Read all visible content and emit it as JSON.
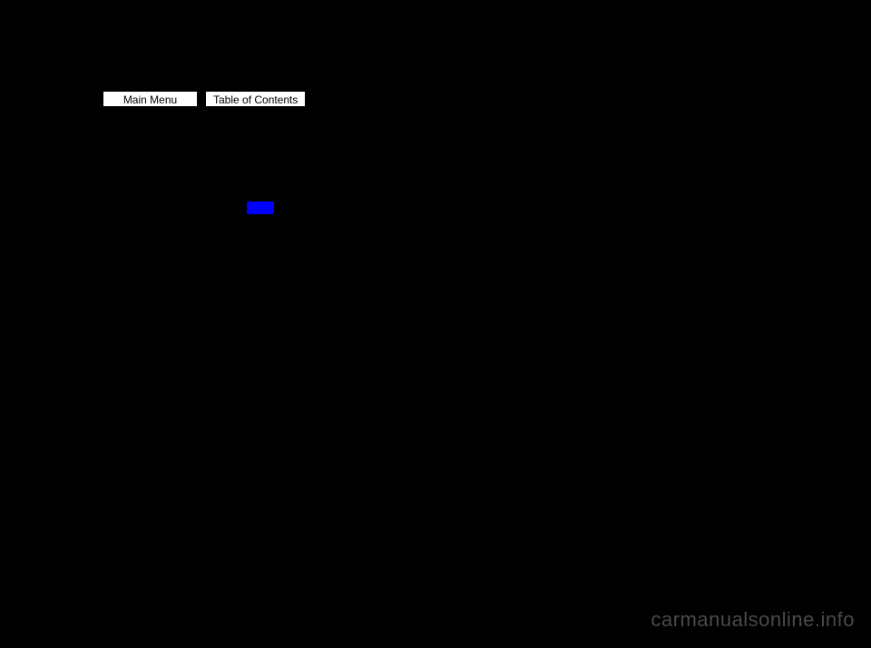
{
  "nav": {
    "main_menu_label": "Main Menu",
    "toc_label": "Table of Contents"
  },
  "watermark": {
    "text": "carmanualsonline.info"
  },
  "colors": {
    "background": "#000000",
    "button_bg": "#ffffff",
    "button_text": "#000000",
    "link_highlight": "#0000ff",
    "watermark_color": "#4a4a4a"
  }
}
